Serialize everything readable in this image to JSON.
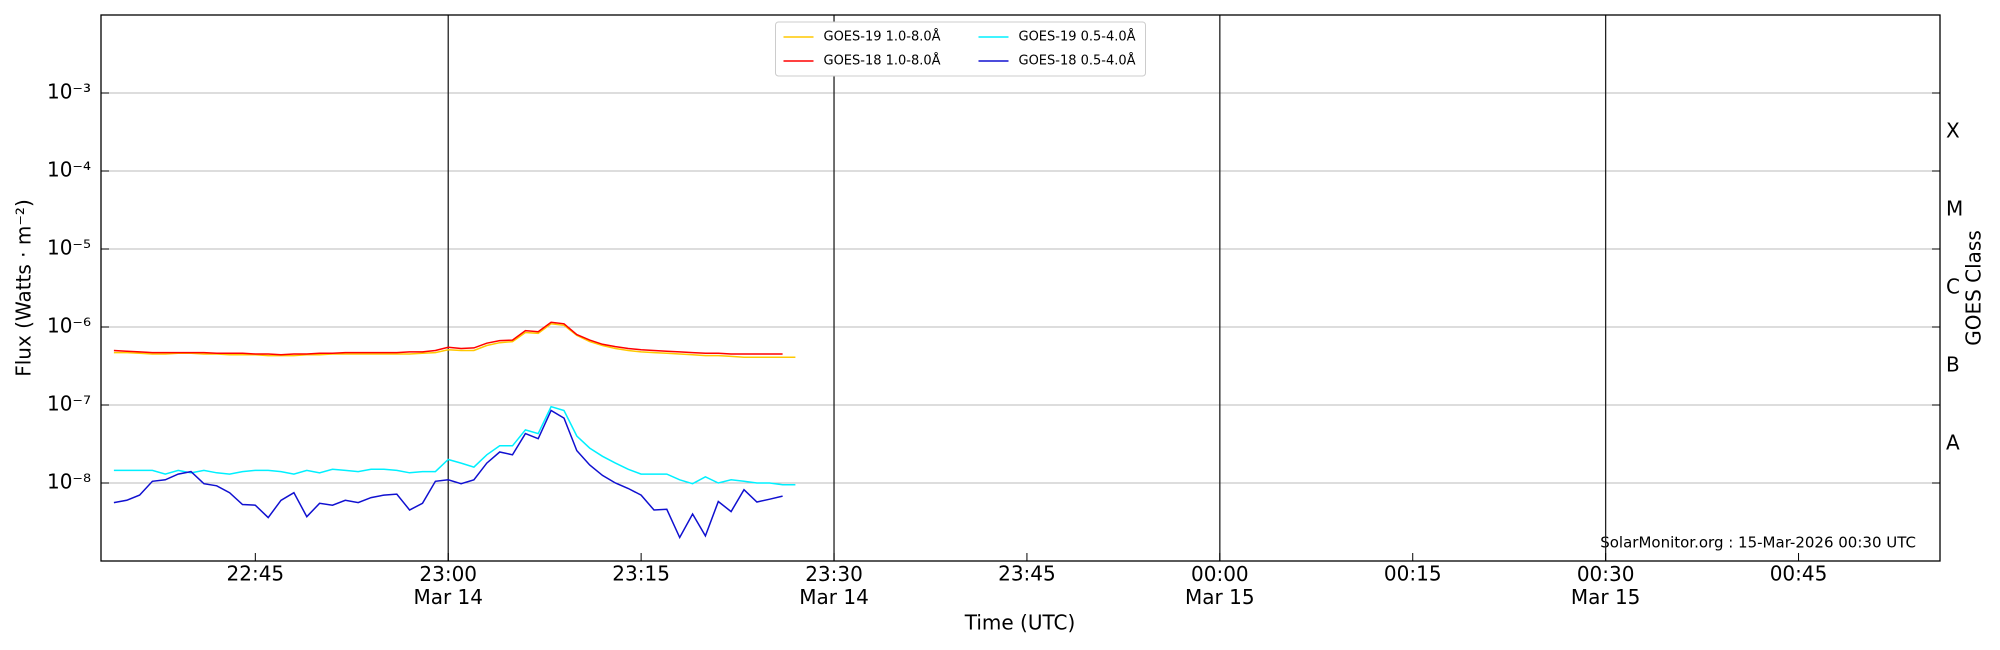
{
  "chart_data": {
    "type": "line",
    "ylabel": "Flux (Watts · m⁻²)",
    "xlabel": "Time (UTC)",
    "y2label": "GOES Class",
    "annotation": "SolarMonitor.org : 15-Mar-2026 00:30 UTC",
    "log_y": true,
    "grid": true,
    "legend": "upper center",
    "xlim": [
      "Mar 14 22:33",
      "Mar 15 00:56"
    ],
    "xticks": [
      {
        "value": "Mar 14 22:45",
        "label": "22:45"
      },
      {
        "value": "Mar 14 23:00",
        "label": "23:00\nMar 14"
      },
      {
        "value": "Mar 14 23:15",
        "label": "23:15"
      },
      {
        "value": "Mar 14 23:30",
        "label": "23:30\nMar 14"
      },
      {
        "value": "Mar 14 23:45",
        "label": "23:45"
      },
      {
        "value": "Mar 15 00:00",
        "label": "00:00\nMar 15"
      },
      {
        "value": "Mar 15 00:15",
        "label": "00:15"
      },
      {
        "value": "Mar 15 00:30",
        "label": "00:30\nMar 15"
      },
      {
        "value": "Mar 15 00:45",
        "label": "00:45"
      }
    ],
    "ylim": [
      1e-09,
      0.01
    ],
    "yticks": [
      {
        "value": 1e-08,
        "label": "10⁻⁸"
      },
      {
        "value": 1e-07,
        "label": "10⁻⁷"
      },
      {
        "value": 1e-06,
        "label": "10⁻⁶"
      },
      {
        "value": 1e-05,
        "label": "10⁻⁵"
      },
      {
        "value": 0.0001,
        "label": "10⁻⁴"
      },
      {
        "value": 0.001,
        "label": "10⁻³"
      }
    ],
    "y2lim": [
      1e-09,
      0.01
    ],
    "y2ticks": [
      {
        "value": 3.16e-08,
        "label": "A"
      },
      {
        "value": 3.16e-07,
        "label": "B"
      },
      {
        "value": 3.16e-06,
        "label": "C"
      },
      {
        "value": 3.16e-05,
        "label": "M"
      },
      {
        "value": 0.000316,
        "label": "X"
      }
    ],
    "x": [
      "Mar 14 22:34",
      "Mar 14 22:35",
      "Mar 14 22:36",
      "Mar 14 22:37",
      "Mar 14 22:38",
      "Mar 14 22:39",
      "Mar 14 22:40",
      "Mar 14 22:41",
      "Mar 14 22:42",
      "Mar 14 22:43",
      "Mar 14 22:44",
      "Mar 14 22:45",
      "Mar 14 22:46",
      "Mar 14 22:47",
      "Mar 14 22:48",
      "Mar 14 22:49",
      "Mar 14 22:50",
      "Mar 14 22:51",
      "Mar 14 22:52",
      "Mar 14 22:53",
      "Mar 14 22:54",
      "Mar 14 22:55",
      "Mar 14 22:56",
      "Mar 14 22:57",
      "Mar 14 22:58",
      "Mar 14 22:59",
      "Mar 14 23:00",
      "Mar 14 23:01",
      "Mar 14 23:02",
      "Mar 14 23:03",
      "Mar 14 23:04",
      "Mar 14 23:05",
      "Mar 14 23:06",
      "Mar 14 23:07",
      "Mar 14 23:08",
      "Mar 14 23:09",
      "Mar 14 23:10",
      "Mar 14 23:11",
      "Mar 14 23:12",
      "Mar 14 23:13",
      "Mar 14 23:14",
      "Mar 14 23:15",
      "Mar 14 23:16",
      "Mar 14 23:17",
      "Mar 14 23:18",
      "Mar 14 23:19",
      "Mar 14 23:20",
      "Mar 14 23:21",
      "Mar 14 23:22",
      "Mar 14 23:23",
      "Mar 14 23:24",
      "Mar 14 23:25",
      "Mar 14 23:26",
      "Mar 14 23:27"
    ],
    "series": [
      {
        "name": "GOES-19 1.0-8.0Å",
        "color": "#ffc800",
        "values": [
          4.7e-07,
          4.7e-07,
          4.6e-07,
          4.5e-07,
          4.5e-07,
          4.6e-07,
          4.6e-07,
          4.5e-07,
          4.5e-07,
          4.4e-07,
          4.4e-07,
          4.4e-07,
          4.3e-07,
          4.3e-07,
          4.3e-07,
          4.4e-07,
          4.4e-07,
          4.5e-07,
          4.5e-07,
          4.5e-07,
          4.5e-07,
          4.5e-07,
          4.5e-07,
          4.5e-07,
          4.6e-07,
          4.7e-07,
          5.1e-07,
          5e-07,
          5e-07,
          5.8e-07,
          6.3e-07,
          6.5e-07,
          8.5e-07,
          8.3e-07,
          1.1e-06,
          1.05e-06,
          7.8e-07,
          6.5e-07,
          5.8e-07,
          5.3e-07,
          5e-07,
          4.8e-07,
          4.7e-07,
          4.6e-07,
          4.5e-07,
          4.4e-07,
          4.3e-07,
          4.3e-07,
          4.2e-07,
          4.1e-07,
          4.1e-07,
          4.1e-07,
          4.1e-07,
          4.1e-07
        ]
      },
      {
        "name": "GOES-18 1.0-8.0Å",
        "color": "#ff0000",
        "values": [
          5e-07,
          4.9e-07,
          4.8e-07,
          4.7e-07,
          4.7e-07,
          4.7e-07,
          4.7e-07,
          4.7e-07,
          4.6e-07,
          4.6e-07,
          4.6e-07,
          4.5e-07,
          4.5e-07,
          4.4e-07,
          4.5e-07,
          4.5e-07,
          4.6e-07,
          4.6e-07,
          4.7e-07,
          4.7e-07,
          4.7e-07,
          4.7e-07,
          4.7e-07,
          4.8e-07,
          4.8e-07,
          5e-07,
          5.5e-07,
          5.3e-07,
          5.4e-07,
          6.2e-07,
          6.7e-07,
          6.8e-07,
          9e-07,
          8.7e-07,
          1.15e-06,
          1.1e-06,
          8e-07,
          6.8e-07,
          6e-07,
          5.6e-07,
          5.3e-07,
          5.1e-07,
          5e-07,
          4.9e-07,
          4.8e-07,
          4.7e-07,
          4.6e-07,
          4.6e-07,
          4.5e-07,
          4.5e-07,
          4.5e-07,
          4.5e-07,
          4.5e-07,
          null
        ]
      },
      {
        "name": "GOES-19 0.5-4.0Å",
        "color": "#00f0ff",
        "values": [
          1.45e-08,
          1.45e-08,
          1.45e-08,
          1.45e-08,
          1.3e-08,
          1.45e-08,
          1.35e-08,
          1.45e-08,
          1.35e-08,
          1.3e-08,
          1.4e-08,
          1.45e-08,
          1.45e-08,
          1.4e-08,
          1.3e-08,
          1.45e-08,
          1.35e-08,
          1.5e-08,
          1.45e-08,
          1.4e-08,
          1.5e-08,
          1.5e-08,
          1.45e-08,
          1.35e-08,
          1.4e-08,
          1.4e-08,
          2e-08,
          1.8e-08,
          1.6e-08,
          2.3e-08,
          3e-08,
          3e-08,
          4.8e-08,
          4.3e-08,
          9.5e-08,
          8.5e-08,
          4e-08,
          2.8e-08,
          2.2e-08,
          1.8e-08,
          1.5e-08,
          1.3e-08,
          1.3e-08,
          1.3e-08,
          1.1e-08,
          9.8e-09,
          1.2e-08,
          1e-08,
          1.1e-08,
          1.05e-08,
          1e-08,
          1e-08,
          9.5e-09,
          9.5e-09
        ]
      },
      {
        "name": "GOES-18 0.5-4.0Å",
        "color": "#1010d0",
        "values": [
          5.6e-09,
          6e-09,
          7e-09,
          1.05e-08,
          1.1e-08,
          1.3e-08,
          1.4e-08,
          9.8e-09,
          9.2e-09,
          7.5e-09,
          5.3e-09,
          5.2e-09,
          3.6e-09,
          6e-09,
          7.5e-09,
          3.7e-09,
          5.5e-09,
          5.2e-09,
          6e-09,
          5.6e-09,
          6.5e-09,
          7e-09,
          7.2e-09,
          4.5e-09,
          5.5e-09,
          1.05e-08,
          1.1e-08,
          9.8e-09,
          1.1e-08,
          1.8e-08,
          2.5e-08,
          2.3e-08,
          4.3e-08,
          3.7e-08,
          8.5e-08,
          6.8e-08,
          2.6e-08,
          1.7e-08,
          1.25e-08,
          1e-08,
          8.5e-09,
          7e-09,
          4.5e-09,
          4.6e-09,
          2e-09,
          4e-09,
          2.1e-09,
          5.8e-09,
          4.3e-09,
          8.2e-09,
          5.7e-09,
          6.2e-09,
          6.8e-09,
          null
        ]
      }
    ]
  }
}
